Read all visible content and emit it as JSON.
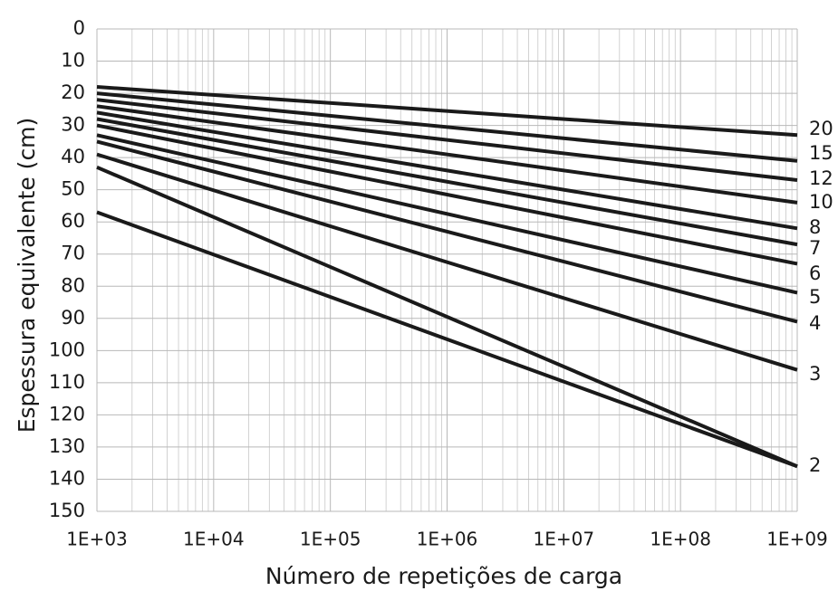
{
  "chart_data": {
    "type": "line",
    "title": "",
    "xlabel": "Número de repetições de carga",
    "ylabel": "Espessura equivalente (cm)",
    "x_scale": "log",
    "xlim": [
      1000,
      1000000000
    ],
    "ylim": [
      0,
      150
    ],
    "y_inverted": true,
    "grid": true,
    "x_ticks": [
      1000,
      10000,
      100000,
      1000000,
      10000000,
      100000000,
      1000000000
    ],
    "x_tick_labels": [
      "1E+03",
      "1E+04",
      "1E+05",
      "1E+06",
      "1E+07",
      "1E+08",
      "1E+09"
    ],
    "y_ticks": [
      0,
      10,
      20,
      30,
      40,
      50,
      60,
      70,
      80,
      90,
      100,
      110,
      120,
      130,
      140,
      150
    ],
    "y_tick_labels": [
      "0",
      "10",
      "20",
      "30",
      "40",
      "50",
      "60",
      "70",
      "80",
      "90",
      "100",
      "110",
      "120",
      "130",
      "140",
      "150"
    ],
    "series": [
      {
        "name": "20",
        "x": [
          1000,
          1000000000
        ],
        "y": [
          18,
          33
        ]
      },
      {
        "name": "15",
        "x": [
          1000,
          1000000000
        ],
        "y": [
          20,
          41
        ]
      },
      {
        "name": "12",
        "x": [
          1000,
          1000000000
        ],
        "y": [
          22,
          47
        ]
      },
      {
        "name": "10",
        "x": [
          1000,
          1000000000
        ],
        "y": [
          24,
          54
        ]
      },
      {
        "name": "8",
        "x": [
          1000,
          1000000000
        ],
        "y": [
          26,
          62
        ]
      },
      {
        "name": "7",
        "x": [
          1000,
          1000000000
        ],
        "y": [
          28,
          67
        ]
      },
      {
        "name": "6",
        "x": [
          1000,
          1000000000
        ],
        "y": [
          30,
          73
        ]
      },
      {
        "name": "5",
        "x": [
          1000,
          1000000000
        ],
        "y": [
          33,
          82
        ]
      },
      {
        "name": "4",
        "x": [
          1000,
          1000000000
        ],
        "y": [
          35,
          91
        ]
      },
      {
        "name": "3",
        "x": [
          1000,
          1000000000
        ],
        "y": [
          39,
          106
        ]
      },
      {
        "name": "2",
        "x": [
          1000,
          1000000000
        ],
        "y": [
          43,
          136
        ]
      }
    ],
    "extra_series": [
      {
        "name": "",
        "x": [
          1000,
          1000000000
        ],
        "y": [
          57,
          136
        ]
      }
    ]
  }
}
